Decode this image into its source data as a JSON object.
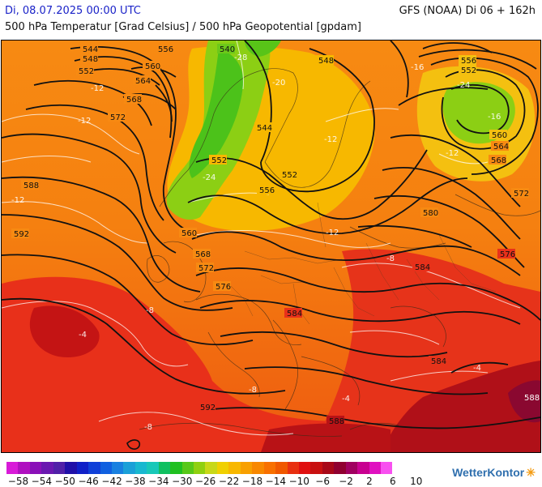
{
  "header": {
    "datetime": "Di, 08.07.2025 00:00 UTC",
    "model": "GFS (NOAA) Di 06 + 162h",
    "subtitle": "500 hPa Temperatur [Grad Celsius] / 500 hPa Geopotential [gpdam]"
  },
  "geopotential_labels": [
    "544",
    "548",
    "552",
    "556",
    "540",
    "548",
    "560",
    "552",
    "556",
    "564",
    "568",
    "572",
    "588",
    "552",
    "544",
    "552",
    "556",
    "560",
    "568",
    "572",
    "576",
    "580",
    "584",
    "592",
    "560",
    "564",
    "568",
    "572",
    "576",
    "580",
    "584",
    "584",
    "584",
    "588",
    "592",
    "588"
  ],
  "temperature_labels": [
    "-28",
    "-24",
    "-20",
    "-16",
    "-12",
    "-12",
    "-12",
    "-12",
    "-8",
    "-8",
    "-8",
    "-4",
    "-4",
    "-4",
    "-8",
    "-12",
    "-12",
    "-24",
    "-16"
  ],
  "legend": {
    "colors": [
      "#d81bd8",
      "#b010c0",
      "#8a10b8",
      "#6a18b0",
      "#5020a8",
      "#2010a8",
      "#1020c8",
      "#1040d8",
      "#1060e0",
      "#1880e0",
      "#1aa0d8",
      "#18b8d0",
      "#18c8b8",
      "#10c060",
      "#20c020",
      "#58c818",
      "#90d010",
      "#c8d818",
      "#f0d000",
      "#f8b800",
      "#f8a000",
      "#f88800",
      "#f87000",
      "#f05800",
      "#e83010",
      "#e01010",
      "#c81010",
      "#a80818",
      "#900030",
      "#a00060",
      "#c80090",
      "#e010c0",
      "#f850f0"
    ],
    "tick_labels": [
      "−58",
      "−54",
      "−50",
      "−46",
      "−42",
      "−38",
      "−34",
      "−30",
      "−26",
      "−22",
      "−18",
      "−14",
      "−10",
      "−6",
      "−2",
      "2",
      "6",
      "10"
    ]
  },
  "brand": {
    "name": "WetterKontor",
    "mark": "✳"
  }
}
